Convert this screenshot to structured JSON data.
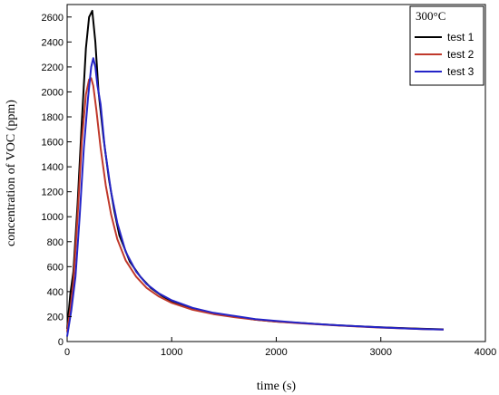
{
  "chart_data": {
    "type": "line",
    "xlabel": "time (s)",
    "ylabel": "concentration of VOC (ppm)",
    "xlim": [
      0,
      4000
    ],
    "ylim": [
      0,
      2700
    ],
    "xticks": [
      0,
      1000,
      2000,
      3000,
      4000
    ],
    "yticks": [
      0,
      200,
      400,
      600,
      800,
      1000,
      1200,
      1400,
      1600,
      1800,
      2000,
      2200,
      2400,
      2600
    ],
    "grid": false,
    "legend": {
      "title": "300°C",
      "position": "top-right"
    },
    "series": [
      {
        "name": "test 1",
        "color": "#000000",
        "x": [
          0,
          30,
          60,
          100,
          140,
          180,
          210,
          240,
          270,
          300,
          350,
          400,
          450,
          500,
          600,
          700,
          800,
          900,
          1000,
          1200,
          1400,
          1600,
          1800,
          2000,
          2200,
          2400,
          2600,
          2800,
          3000,
          3200,
          3400,
          3600
        ],
        "y": [
          100,
          380,
          560,
          1100,
          1750,
          2350,
          2600,
          2650,
          2400,
          2000,
          1620,
          1300,
          1050,
          850,
          640,
          520,
          430,
          370,
          320,
          265,
          225,
          200,
          175,
          160,
          150,
          140,
          130,
          122,
          115,
          108,
          102,
          98
        ]
      },
      {
        "name": "test 2",
        "color": "#c0392b",
        "x": [
          0,
          30,
          60,
          100,
          140,
          180,
          210,
          230,
          250,
          280,
          320,
          370,
          420,
          480,
          560,
          660,
          760,
          880,
          1000,
          1200,
          1400,
          1600,
          1800,
          2000,
          2200,
          2400,
          2600,
          2800,
          3000,
          3200,
          3400,
          3600
        ],
        "y": [
          80,
          260,
          480,
          1000,
          1600,
          1980,
          2100,
          2110,
          2050,
          1850,
          1550,
          1250,
          1020,
          820,
          650,
          520,
          430,
          360,
          310,
          255,
          220,
          195,
          175,
          160,
          148,
          138,
          128,
          120,
          112,
          106,
          100,
          96
        ]
      },
      {
        "name": "test 3",
        "color": "#2424c8",
        "x": [
          0,
          40,
          80,
          120,
          160,
          200,
          230,
          250,
          270,
          290,
          320,
          360,
          420,
          480,
          560,
          660,
          760,
          880,
          1000,
          1200,
          1400,
          1600,
          1800,
          2000,
          2200,
          2400,
          2600,
          2800,
          3000,
          3200,
          3400,
          3600
        ],
        "y": [
          40,
          250,
          520,
          1000,
          1550,
          1950,
          2200,
          2270,
          2200,
          2050,
          1900,
          1550,
          1200,
          950,
          720,
          560,
          460,
          385,
          330,
          270,
          230,
          205,
          180,
          165,
          152,
          140,
          130,
          121,
          113,
          106,
          100,
          96
        ]
      }
    ]
  }
}
